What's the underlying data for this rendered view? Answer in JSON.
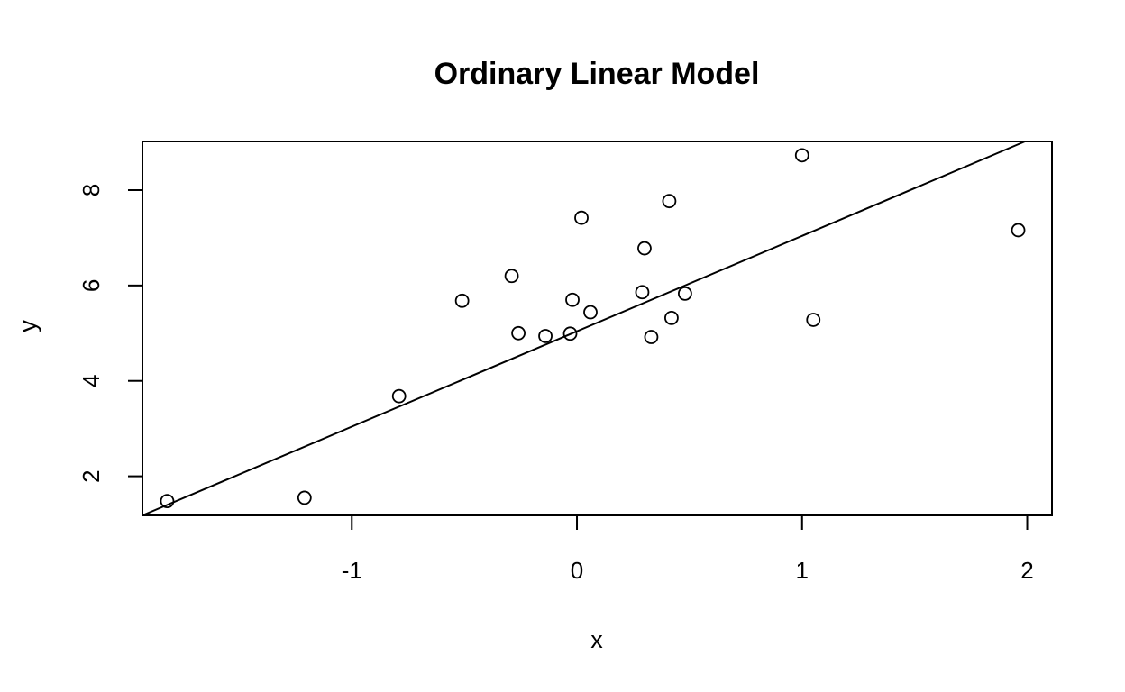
{
  "chart_data": {
    "type": "scatter",
    "title": "Ordinary Linear Model",
    "xlabel": "x",
    "ylabel": "y",
    "xlim": [
      -1.93,
      2.11
    ],
    "ylim": [
      1.18,
      9.02
    ],
    "xticks": [
      -1,
      0,
      1,
      2
    ],
    "yticks": [
      2,
      4,
      6,
      8
    ],
    "grid": false,
    "legend": "none",
    "points": [
      {
        "x": -1.82,
        "y": 1.48
      },
      {
        "x": -1.21,
        "y": 1.55
      },
      {
        "x": -0.79,
        "y": 3.68
      },
      {
        "x": -0.51,
        "y": 5.68
      },
      {
        "x": -0.29,
        "y": 6.2
      },
      {
        "x": -0.26,
        "y": 5.0
      },
      {
        "x": -0.14,
        "y": 4.94
      },
      {
        "x": -0.03,
        "y": 4.99
      },
      {
        "x": -0.02,
        "y": 5.7
      },
      {
        "x": 0.02,
        "y": 7.42
      },
      {
        "x": 0.06,
        "y": 5.44
      },
      {
        "x": 0.29,
        "y": 5.86
      },
      {
        "x": 0.3,
        "y": 6.78
      },
      {
        "x": 0.33,
        "y": 4.92
      },
      {
        "x": 0.41,
        "y": 7.77
      },
      {
        "x": 0.42,
        "y": 5.32
      },
      {
        "x": 0.48,
        "y": 5.83
      },
      {
        "x": 1.0,
        "y": 8.73
      },
      {
        "x": 1.05,
        "y": 5.28
      },
      {
        "x": 1.96,
        "y": 7.16
      }
    ],
    "fit_line": {
      "intercept": 5.04,
      "slope": 2.0
    }
  }
}
